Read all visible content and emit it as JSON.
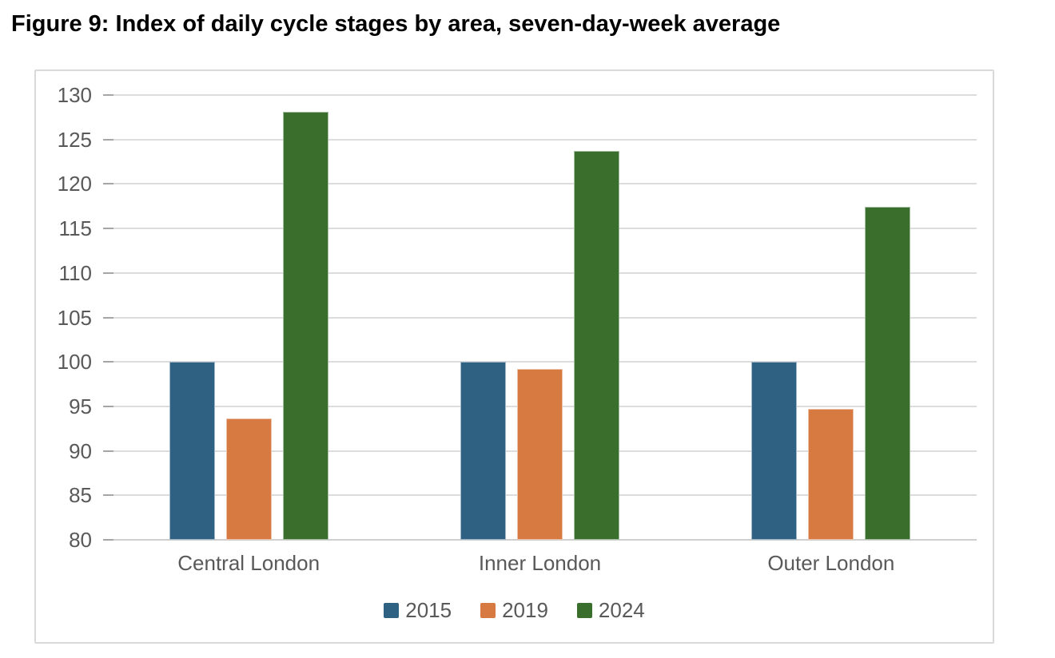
{
  "figure_title": "Figure 9: Index of daily cycle stages by area, seven-day-week average",
  "colors": {
    "title_text": "#000000",
    "axis_text": "#595959",
    "gridline": "#dcdcdc",
    "tick": "#a6a6a6",
    "container_border": "#d9d9d9",
    "background": "#ffffff",
    "series_2015": "#2f6183",
    "series_2019": "#d67a42",
    "series_2024": "#396e2d"
  },
  "chart_data": {
    "type": "bar",
    "title": "Figure 9: Index of daily cycle stages by area, seven-day-week average",
    "categories": [
      "Central London",
      "Inner London",
      "Outer London"
    ],
    "series": [
      {
        "name": "2015",
        "color": "#2f6183",
        "values": [
          100,
          100,
          100
        ]
      },
      {
        "name": "2019",
        "color": "#d67a42",
        "values": [
          93.6,
          99.2,
          94.7
        ]
      },
      {
        "name": "2024",
        "color": "#396e2d",
        "values": [
          128.1,
          123.7,
          117.4
        ]
      }
    ],
    "xlabel": "",
    "ylabel": "",
    "ylim": [
      80,
      130
    ],
    "ytick_step": 5,
    "yticks": [
      80,
      85,
      90,
      95,
      100,
      105,
      110,
      115,
      120,
      125,
      130
    ],
    "grid": true,
    "legend_position": "bottom"
  }
}
